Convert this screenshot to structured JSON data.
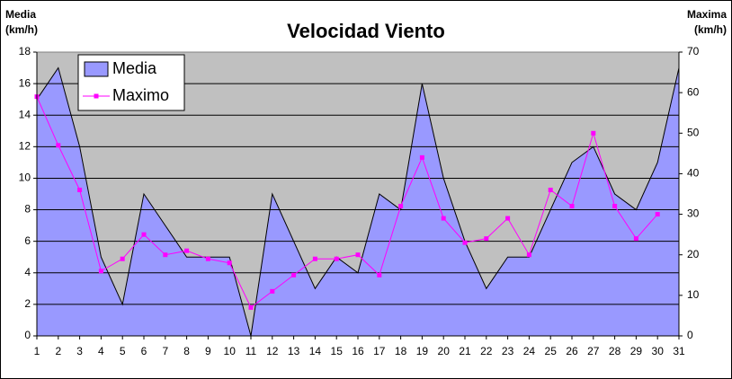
{
  "chart_data": {
    "type": "combo",
    "title": "Velocidad Viento",
    "y_label": [
      "Media",
      "(km/h)"
    ],
    "y2_label": [
      "Maxima",
      "(km/h)"
    ],
    "x": [
      1,
      2,
      3,
      4,
      5,
      6,
      7,
      8,
      9,
      10,
      11,
      12,
      13,
      14,
      15,
      16,
      17,
      18,
      19,
      20,
      21,
      22,
      23,
      24,
      25,
      26,
      27,
      28,
      29,
      30,
      31
    ],
    "xlim": [
      1,
      31
    ],
    "xticks": [
      1,
      2,
      3,
      4,
      5,
      6,
      7,
      8,
      9,
      10,
      11,
      12,
      13,
      14,
      15,
      16,
      17,
      18,
      19,
      20,
      21,
      22,
      23,
      24,
      25,
      26,
      27,
      28,
      29,
      30,
      31
    ],
    "ylim": [
      0,
      18
    ],
    "yticks": [
      0,
      2,
      4,
      6,
      8,
      10,
      12,
      14,
      16,
      18
    ],
    "y2lim": [
      0,
      70
    ],
    "y2ticks": [
      0,
      10,
      20,
      30,
      40,
      50,
      60,
      70
    ],
    "grid": true,
    "legend": "upper left",
    "series": [
      {
        "name": "Media",
        "type": "area",
        "color": "#9999ff",
        "values": [
          15,
          17,
          12,
          5,
          2,
          9,
          7,
          5,
          5,
          5,
          0,
          9,
          6,
          3,
          5,
          4,
          9,
          8,
          16,
          10,
          6,
          3,
          5,
          5,
          8,
          11,
          12,
          9,
          8,
          11,
          17
        ]
      },
      {
        "name": "Maximo",
        "type": "line",
        "axis": "y2",
        "color": "#ff00ff",
        "values": [
          59,
          47,
          36,
          16,
          19,
          25,
          20,
          21,
          19,
          18,
          7,
          11,
          15,
          19,
          19,
          20,
          15,
          32,
          44,
          29,
          23,
          24,
          29,
          20,
          36,
          32,
          50,
          32,
          24,
          30,
          null
        ]
      }
    ]
  }
}
